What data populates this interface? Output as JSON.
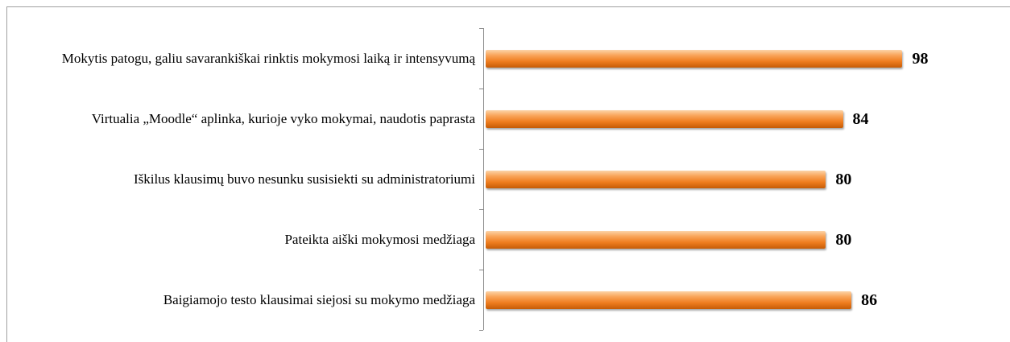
{
  "chart_data": {
    "type": "bar",
    "orientation": "horizontal",
    "color": "#ef7d1f",
    "categories": [
      "Mokytis patogu, galiu savarankiškai rinktis mokymosi laiką ir intensyvumą",
      "Virtualia „Moodle“ aplinka, kurioje vyko mokymai, naudotis paprasta",
      "Iškilus klausimų buvo nesunku susisiekti su administratoriumi",
      "Pateikta aiški mokymosi medžiaga",
      "Baigiamojo testo klausimai siejosi su mokymo medžiaga"
    ],
    "values": [
      98,
      84,
      80,
      80,
      86
    ]
  }
}
